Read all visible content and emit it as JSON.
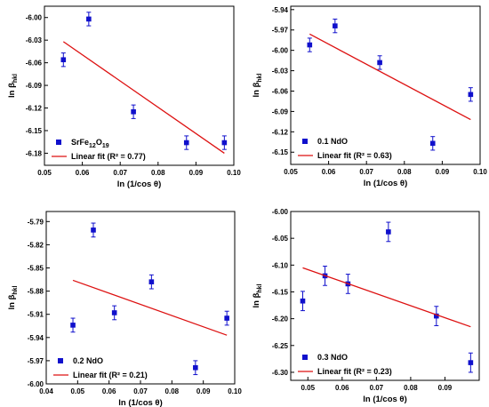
{
  "chart_data": [
    {
      "type": "scatter",
      "panel": "top-left",
      "xlabel": "ln (1/cos θ)",
      "ylabel": "ln β",
      "ylabel_sub": "hkl",
      "xlim": [
        0.05,
        0.1
      ],
      "ylim": [
        -6.196,
        -5.985
      ],
      "xticks": [
        "0.05",
        "0.06",
        "0.07",
        "0.08",
        "0.09",
        "0.10"
      ],
      "xtick_values": [
        0.05,
        0.06,
        0.07,
        0.08,
        0.09,
        0.1
      ],
      "yticks": [
        "-6.00",
        "-6.03",
        "-6.06",
        "-6.09",
        "-6.12",
        "-6.15",
        "-6.18"
      ],
      "ytick_values": [
        -6.0,
        -6.03,
        -6.06,
        -6.09,
        -6.12,
        -6.15,
        -6.18
      ],
      "legend_position": "bottom-left",
      "series": [
        {
          "name": "SrFe12O19",
          "name_main": "SrFe",
          "name_parts": [
            [
              "12",
              "sub"
            ],
            [
              "O",
              "normal"
            ],
            [
              "19",
              "sub"
            ]
          ],
          "kind": "points",
          "color": "#1010cc",
          "x": [
            0.055,
            0.0617,
            0.0735,
            0.0875,
            0.0975
          ],
          "y": [
            -6.056,
            -6.002,
            -6.125,
            -6.166,
            -6.166
          ],
          "err": [
            0.009,
            0.009,
            0.009,
            0.009,
            0.009
          ]
        },
        {
          "name": "Linear fit (R² = 0.77)",
          "kind": "line",
          "color": "#dd1111",
          "x": [
            0.055,
            0.0975
          ],
          "y": [
            -6.032,
            -6.18
          ]
        }
      ]
    },
    {
      "type": "scatter",
      "panel": "top-right",
      "xlabel": "ln (1/cos θ)",
      "ylabel": "ln β",
      "ylabel_sub": "hkl",
      "xlim": [
        0.05,
        0.1
      ],
      "ylim": [
        -6.168,
        -5.935
      ],
      "xticks": [
        "0.05",
        "0.06",
        "0.07",
        "0.08",
        "0.09",
        "0.10"
      ],
      "xtick_values": [
        0.05,
        0.06,
        0.07,
        0.08,
        0.09,
        0.1
      ],
      "yticks": [
        "-5.94",
        "-5.97",
        "-6.00",
        "-6.03",
        "-6.06",
        "-6.09",
        "-6.12",
        "-6.15"
      ],
      "ytick_values": [
        -5.94,
        -5.97,
        -6.0,
        -6.03,
        -6.06,
        -6.09,
        -6.12,
        -6.15
      ],
      "legend_position": "bottom-left",
      "series": [
        {
          "name": "0.1 NdO",
          "kind": "points",
          "color": "#1010cc",
          "x": [
            0.055,
            0.0617,
            0.0735,
            0.0875,
            0.0975
          ],
          "y": [
            -5.992,
            -5.964,
            -6.018,
            -6.137,
            -6.065
          ],
          "err": [
            0.01,
            0.01,
            0.01,
            0.01,
            0.01
          ]
        },
        {
          "name": "Linear fit (R² = 0.63)",
          "kind": "line",
          "color": "#dd1111",
          "x": [
            0.055,
            0.0975
          ],
          "y": [
            -5.976,
            -6.102
          ]
        }
      ]
    },
    {
      "type": "scatter",
      "panel": "bottom-left",
      "xlabel": "ln (1/cos θ)",
      "ylabel": "ln β",
      "ylabel_sub": "hkl",
      "xlim": [
        0.04,
        0.1
      ],
      "ylim": [
        -6.0,
        -5.777
      ],
      "xticks": [
        "0.04",
        "0.05",
        "0.06",
        "0.07",
        "0.08",
        "0.09",
        "0.10"
      ],
      "xtick_values": [
        0.04,
        0.05,
        0.06,
        0.07,
        0.08,
        0.09,
        0.1
      ],
      "yticks": [
        "-5.79",
        "-5.82",
        "-5.85",
        "-5.88",
        "-5.91",
        "-5.94",
        "-5.97",
        "-6.00"
      ],
      "ytick_values": [
        -5.79,
        -5.82,
        -5.85,
        -5.88,
        -5.91,
        -5.94,
        -5.97,
        -6.0
      ],
      "legend_position": "bottom-left",
      "series": [
        {
          "name": "0.2 NdO",
          "kind": "points",
          "color": "#1010cc",
          "x": [
            0.0485,
            0.055,
            0.0617,
            0.0735,
            0.0875,
            0.0975
          ],
          "y": [
            -5.924,
            -5.801,
            -5.908,
            -5.868,
            -5.979,
            -5.915
          ],
          "err": [
            0.009,
            0.009,
            0.009,
            0.009,
            0.009,
            0.009
          ]
        },
        {
          "name": "Linear fit (R² = 0.21)",
          "kind": "line",
          "color": "#dd1111",
          "x": [
            0.0485,
            0.0975
          ],
          "y": [
            -5.866,
            -5.937
          ]
        }
      ]
    },
    {
      "type": "scatter",
      "panel": "bottom-right",
      "xlabel": "ln (1/cos θ)",
      "ylabel": "ln β",
      "ylabel_sub": "hkl",
      "xlim": [
        0.045,
        0.1
      ],
      "ylim": [
        -6.315,
        -6.0
      ],
      "xticks": [
        "0.05",
        "0.06",
        "0.07",
        "0.08",
        "0.09"
      ],
      "xtick_values": [
        0.05,
        0.06,
        0.07,
        0.08,
        0.09
      ],
      "yticks": [
        "-6.00",
        "-6.05",
        "-6.10",
        "-6.15",
        "-6.20",
        "-6.25",
        "-6.30"
      ],
      "ytick_values": [
        -6.0,
        -6.05,
        -6.1,
        -6.15,
        -6.2,
        -6.25,
        -6.3
      ],
      "legend_position": "bottom-left",
      "series": [
        {
          "name": "0.3 NdO",
          "kind": "points",
          "color": "#1010cc",
          "x": [
            0.0485,
            0.055,
            0.0617,
            0.0735,
            0.0875,
            0.0975
          ],
          "y": [
            -6.167,
            -6.12,
            -6.135,
            -6.038,
            -6.195,
            -6.282
          ],
          "err": [
            0.018,
            0.018,
            0.018,
            0.018,
            0.018,
            0.018
          ]
        },
        {
          "name": "Linear fit (R² = 0.23)",
          "kind": "line",
          "color": "#dd1111",
          "x": [
            0.0485,
            0.0975
          ],
          "y": [
            -6.105,
            -6.215
          ]
        }
      ]
    }
  ]
}
